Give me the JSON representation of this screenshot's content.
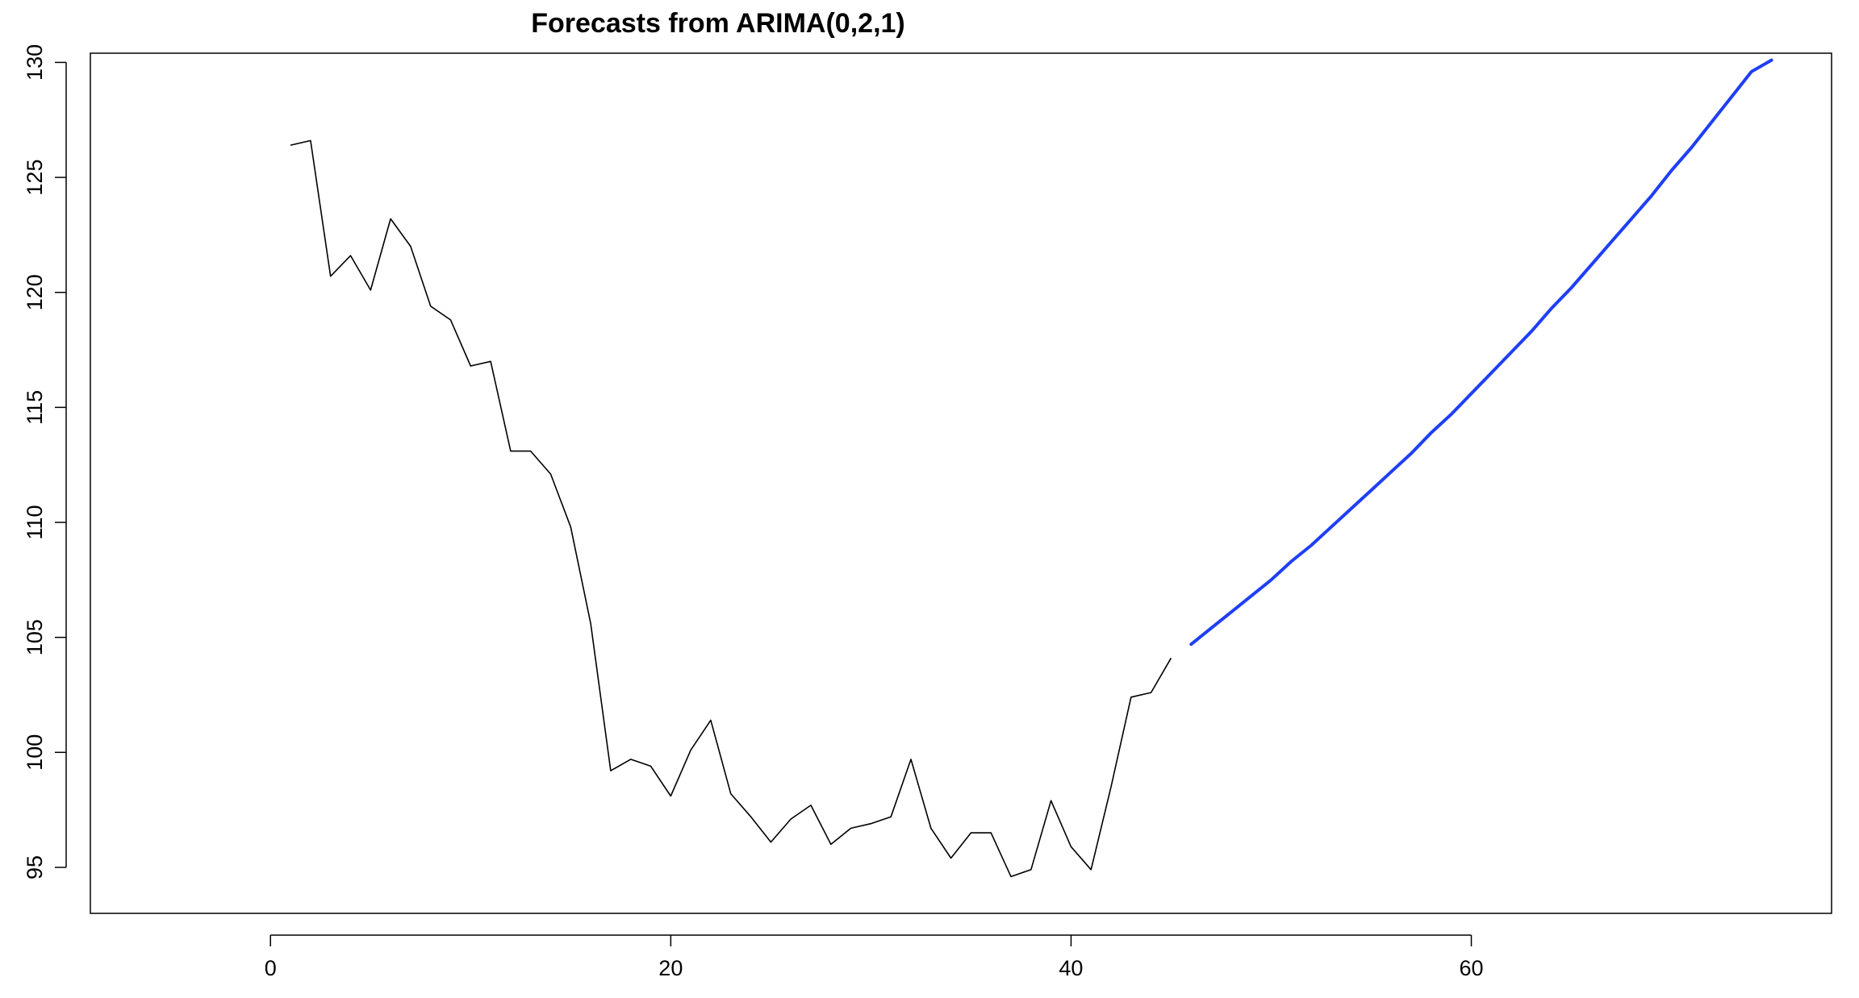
{
  "chart_data": {
    "type": "line",
    "title": "Forecasts from ARIMA(0,2,1)",
    "xlabel": "",
    "ylabel": "",
    "xlim": [
      -9,
      78
    ],
    "ylim": [
      93,
      130.4
    ],
    "x_ticks": [
      0,
      20,
      40,
      60
    ],
    "y_ticks": [
      95,
      100,
      105,
      110,
      115,
      120,
      125,
      130
    ],
    "grid": false,
    "legend": "none",
    "series": [
      {
        "role": "observed",
        "color": "#000000",
        "x": [
          1,
          2,
          3,
          4,
          5,
          6,
          7,
          8,
          9,
          10,
          11,
          12,
          13,
          14,
          15,
          16,
          17,
          18,
          19,
          20,
          21,
          22,
          23,
          24,
          25,
          26,
          27,
          28,
          29,
          30,
          31,
          32,
          33,
          34,
          35,
          36,
          37,
          38,
          39,
          40,
          41,
          42,
          43,
          44,
          45
        ],
        "values": [
          126.4,
          126.6,
          120.7,
          121.6,
          120.1,
          123.2,
          122.0,
          119.4,
          118.8,
          116.8,
          117.0,
          113.1,
          113.1,
          112.1,
          109.8,
          105.6,
          99.2,
          99.7,
          99.4,
          98.1,
          100.1,
          101.4,
          98.2,
          97.2,
          96.1,
          97.1,
          97.7,
          96.0,
          96.7,
          96.9,
          97.2,
          99.7,
          96.7,
          95.4,
          96.5,
          96.5,
          94.6,
          94.9,
          97.9,
          95.9,
          94.9,
          98.5,
          102.4,
          102.6,
          104.1
        ]
      },
      {
        "role": "forecast",
        "color": "#1f3ff5",
        "x": [
          46,
          47,
          48,
          49,
          50,
          51,
          52,
          53,
          54,
          55,
          56,
          57,
          58,
          59,
          60,
          61,
          62,
          63,
          64,
          65,
          66,
          67,
          68,
          69,
          70,
          71,
          72,
          73,
          74,
          75
        ],
        "values": [
          104.7,
          105.4,
          106.1,
          106.8,
          107.5,
          108.3,
          109.0,
          109.8,
          110.6,
          111.4,
          112.2,
          113.0,
          113.9,
          114.7,
          115.6,
          116.5,
          117.4,
          118.3,
          119.3,
          120.2,
          121.2,
          122.2,
          123.2,
          124.2,
          125.3,
          126.3,
          127.4,
          128.5,
          129.6,
          130.1
        ]
      }
    ]
  }
}
